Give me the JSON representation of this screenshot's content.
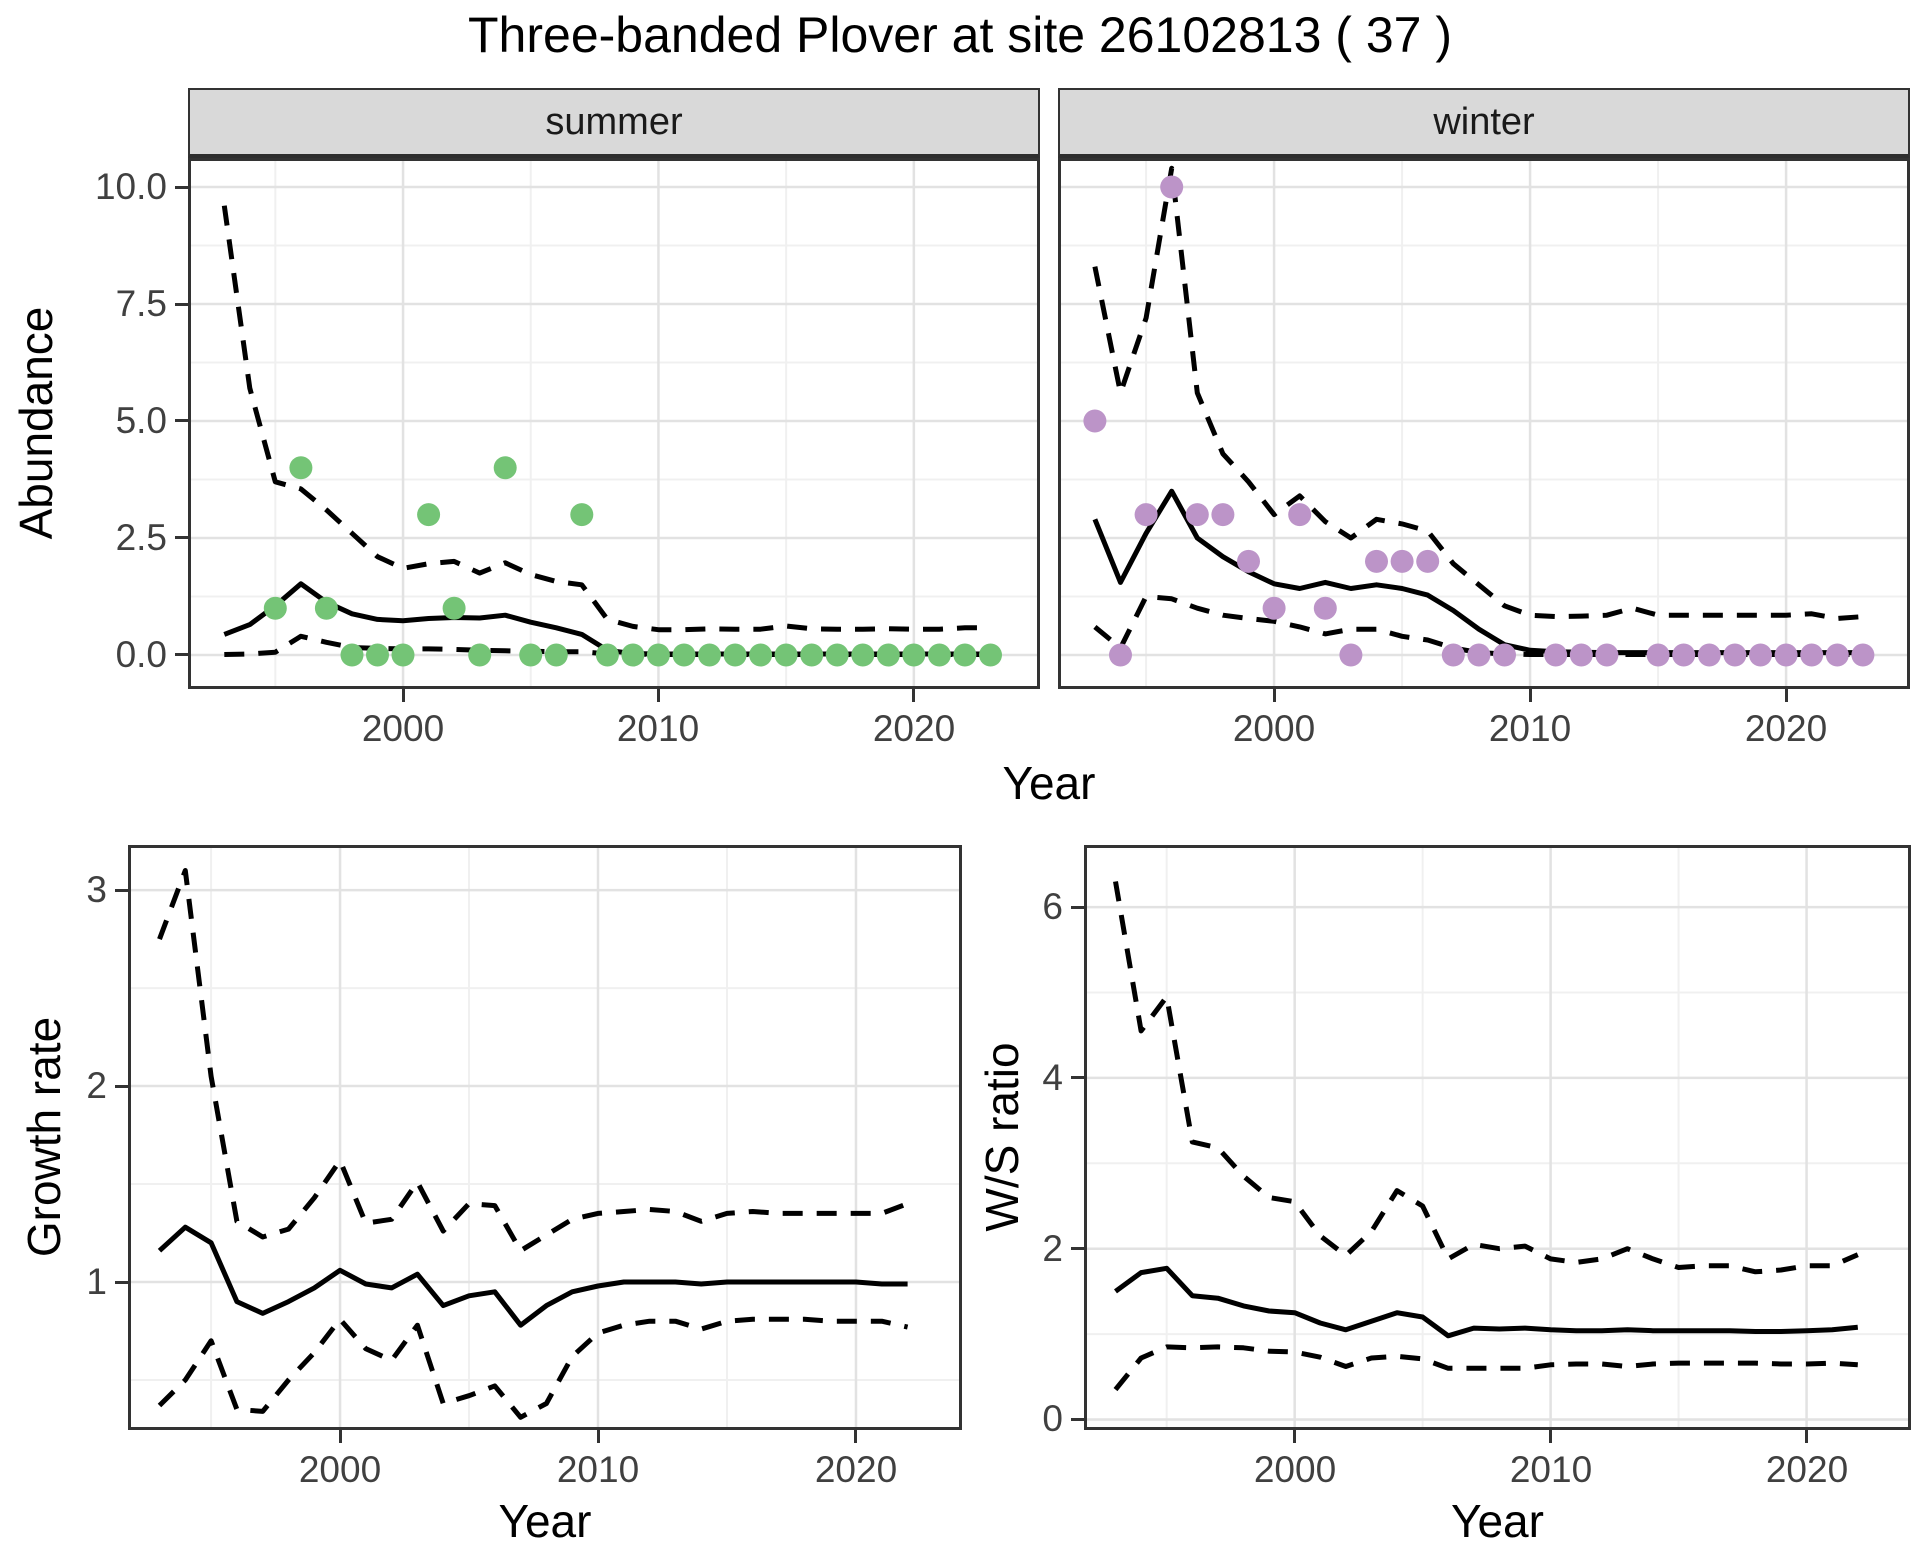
{
  "title": "Three-banded Plover at site 26102813 ( 37 )",
  "colors": {
    "summer_point": "#74C476",
    "winter_point": "#BC94C8",
    "fit_line": "#000000",
    "ci_line": "#000000",
    "grid_major": "#E2E2E2",
    "grid_minor": "#F0F0F0",
    "panel_border": "#333333",
    "strip_bg": "#D9D9D9",
    "tick_text": "#404040"
  },
  "chart_data": [
    {
      "id": "summer",
      "type": "line",
      "facet": "summer",
      "xlabel": "Year",
      "ylabel": "Abundance",
      "xlim": [
        1991.58,
        2024.94
      ],
      "ylim": [
        -0.727,
        10.62
      ],
      "x_tick_values": [
        2000,
        2010,
        2020
      ],
      "x_tick_labels": [
        "2000",
        "2010",
        "2020"
      ],
      "x_minor": [
        1995,
        2005,
        2015
      ],
      "y_tick_values": [
        0,
        2.5,
        5,
        7.5,
        10
      ],
      "y_tick_labels": [
        "0.0",
        "2.5",
        "5.0",
        "7.5",
        "10.0"
      ],
      "y_minor": [
        1.25,
        3.75,
        6.25,
        8.75
      ],
      "show_y_tick_labels": true,
      "grid": true,
      "legend": "none",
      "years": [
        1993,
        1994,
        1995,
        1996,
        1997,
        1998,
        1999,
        2000,
        2001,
        2002,
        2003,
        2004,
        2005,
        2006,
        2007,
        2008,
        2009,
        2010,
        2011,
        2012,
        2013,
        2014,
        2015,
        2016,
        2017,
        2018,
        2019,
        2020,
        2021,
        2022,
        2023
      ],
      "series": [
        {
          "name": "fit",
          "style": "solid",
          "values": [
            0.44,
            0.65,
            1.05,
            1.52,
            1.13,
            0.88,
            0.76,
            0.73,
            0.78,
            0.8,
            0.79,
            0.85,
            0.7,
            0.58,
            0.44,
            0.1,
            0.03,
            0.02,
            0.02,
            0.02,
            0.02,
            0.02,
            0.02,
            0.02,
            0.02,
            0.02,
            0.02,
            0.02,
            0.02,
            0.02,
            0.02
          ]
        },
        {
          "name": "upper",
          "style": "dashed",
          "values": [
            9.6,
            5.7,
            3.7,
            3.55,
            3.1,
            2.6,
            2.1,
            1.85,
            1.95,
            2.0,
            1.75,
            1.97,
            1.72,
            1.57,
            1.5,
            0.76,
            0.61,
            0.54,
            0.54,
            0.56,
            0.55,
            0.55,
            0.62,
            0.56,
            0.55,
            0.55,
            0.56,
            0.55,
            0.55,
            0.58,
            0.58
          ]
        },
        {
          "name": "lower",
          "style": "dashed",
          "values": [
            0.01,
            0.02,
            0.06,
            0.4,
            0.27,
            0.16,
            0.14,
            0.13,
            0.13,
            0.12,
            0.1,
            0.09,
            0.08,
            0.07,
            0.07,
            0.02,
            0.02,
            0.01,
            0.01,
            0.01,
            0.01,
            0.01,
            0.01,
            0.01,
            0.01,
            0.01,
            0.01,
            0.01,
            0.01,
            0.01,
            0.01
          ]
        }
      ],
      "obs": {
        "years": [
          1995,
          1996,
          1997,
          1998,
          1999,
          2000,
          2001,
          2002,
          2003,
          2004,
          2005,
          2006,
          2007,
          2008,
          2009,
          2010,
          2011,
          2012,
          2013,
          2014,
          2015,
          2016,
          2017,
          2018,
          2019,
          2020,
          2021,
          2022,
          2023
        ],
        "values": [
          1,
          4,
          1,
          0,
          0,
          0,
          3,
          1,
          0,
          4,
          0,
          0,
          3,
          0,
          0,
          0,
          0,
          0,
          0,
          0,
          0,
          0,
          0,
          0,
          0,
          0,
          0,
          0,
          0
        ]
      },
      "point_color": "#74C476"
    },
    {
      "id": "winter",
      "type": "line",
      "facet": "winter",
      "xlabel": "Year",
      "ylabel": "Abundance",
      "xlim": [
        1991.56,
        2024.84
      ],
      "ylim": [
        -0.727,
        10.62
      ],
      "x_tick_values": [
        2000,
        2010,
        2020
      ],
      "x_tick_labels": [
        "2000",
        "2010",
        "2020"
      ],
      "x_minor": [
        1995,
        2005,
        2015
      ],
      "y_tick_values": [
        0,
        2.5,
        5,
        7.5,
        10
      ],
      "y_tick_labels": [
        "0.0",
        "2.5",
        "5.0",
        "7.5",
        "10.0"
      ],
      "y_minor": [
        1.25,
        3.75,
        6.25,
        8.75
      ],
      "show_y_tick_labels": false,
      "grid": true,
      "legend": "none",
      "years": [
        1993,
        1994,
        1995,
        1996,
        1997,
        1998,
        1999,
        2000,
        2001,
        2002,
        2003,
        2004,
        2005,
        2006,
        2007,
        2008,
        2009,
        2010,
        2011,
        2012,
        2013,
        2014,
        2015,
        2016,
        2017,
        2018,
        2019,
        2020,
        2021,
        2022,
        2023
      ],
      "series": [
        {
          "name": "fit",
          "style": "solid",
          "values": [
            2.9,
            1.55,
            2.6,
            3.5,
            2.5,
            2.1,
            1.78,
            1.52,
            1.42,
            1.55,
            1.42,
            1.5,
            1.42,
            1.28,
            0.95,
            0.55,
            0.22,
            0.1,
            0.07,
            0.06,
            0.05,
            0.05,
            0.05,
            0.05,
            0.05,
            0.05,
            0.05,
            0.05,
            0.05,
            0.05,
            0.05
          ]
        },
        {
          "name": "upper",
          "style": "dashed",
          "values": [
            8.3,
            5.6,
            7.2,
            10.4,
            5.6,
            4.3,
            3.7,
            3.0,
            3.4,
            2.85,
            2.5,
            2.9,
            2.8,
            2.65,
            1.95,
            1.5,
            1.05,
            0.85,
            0.82,
            0.83,
            0.85,
            1.0,
            0.85,
            0.85,
            0.85,
            0.85,
            0.85,
            0.85,
            0.88,
            0.78,
            0.82
          ]
        },
        {
          "name": "lower",
          "style": "dashed",
          "values": [
            0.6,
            0.15,
            1.25,
            1.2,
            1.0,
            0.85,
            0.78,
            0.72,
            0.6,
            0.45,
            0.55,
            0.55,
            0.4,
            0.32,
            0.15,
            0.05,
            0.02,
            0.01,
            0.01,
            0.01,
            0.01,
            0.01,
            0.01,
            0.01,
            0.01,
            0.01,
            0.01,
            0.01,
            0.01,
            0.01,
            0.01
          ]
        }
      ],
      "obs": {
        "years": [
          1993,
          1994,
          1995,
          1996,
          1997,
          1998,
          1999,
          2000,
          2001,
          2002,
          2003,
          2004,
          2005,
          2006,
          2007,
          2008,
          2009,
          2011,
          2012,
          2013,
          2015,
          2016,
          2017,
          2018,
          2019,
          2020,
          2021,
          2022,
          2023
        ],
        "values": [
          5,
          0,
          3,
          10,
          3,
          3,
          2,
          1,
          3,
          1,
          0,
          2,
          2,
          2,
          0,
          0,
          0,
          0,
          0,
          0,
          0,
          0,
          0,
          0,
          0,
          0,
          0,
          0,
          0
        ]
      },
      "point_color": "#BC94C8"
    },
    {
      "id": "growth",
      "type": "line",
      "xlabel": "Year",
      "ylabel": "Growth rate",
      "xlim": [
        1991.78,
        2024.11
      ],
      "ylim": [
        0.245,
        3.23
      ],
      "x_tick_values": [
        2000,
        2010,
        2020
      ],
      "x_tick_labels": [
        "2000",
        "2010",
        "2020"
      ],
      "x_minor": [
        1995,
        2005,
        2015
      ],
      "y_tick_values": [
        1,
        2,
        3
      ],
      "y_tick_labels": [
        "1",
        "2",
        "3"
      ],
      "y_minor": [
        0.5,
        1.5,
        2.5
      ],
      "show_y_tick_labels": true,
      "grid": true,
      "legend": "none",
      "years": [
        1993,
        1994,
        1995,
        1996,
        1997,
        1998,
        1999,
        2000,
        2001,
        2002,
        2003,
        2004,
        2005,
        2006,
        2007,
        2008,
        2009,
        2010,
        2011,
        2012,
        2013,
        2014,
        2015,
        2016,
        2017,
        2018,
        2019,
        2020,
        2021,
        2022
      ],
      "series": [
        {
          "name": "fit",
          "style": "solid",
          "values": [
            1.16,
            1.28,
            1.2,
            0.9,
            0.84,
            0.9,
            0.97,
            1.06,
            0.99,
            0.97,
            1.04,
            0.88,
            0.93,
            0.95,
            0.78,
            0.88,
            0.95,
            0.98,
            1.0,
            1.0,
            1.0,
            0.99,
            1.0,
            1.0,
            1.0,
            1.0,
            1.0,
            1.0,
            0.99,
            0.99
          ]
        },
        {
          "name": "upper",
          "style": "dashed",
          "values": [
            2.75,
            3.1,
            2.05,
            1.31,
            1.23,
            1.27,
            1.43,
            1.62,
            1.3,
            1.32,
            1.51,
            1.26,
            1.4,
            1.39,
            1.16,
            1.24,
            1.32,
            1.35,
            1.36,
            1.37,
            1.36,
            1.31,
            1.35,
            1.36,
            1.35,
            1.35,
            1.35,
            1.35,
            1.35,
            1.4
          ]
        },
        {
          "name": "lower",
          "style": "dashed",
          "values": [
            0.37,
            0.5,
            0.7,
            0.35,
            0.34,
            0.5,
            0.64,
            0.81,
            0.66,
            0.6,
            0.78,
            0.38,
            0.42,
            0.47,
            0.31,
            0.38,
            0.62,
            0.74,
            0.78,
            0.8,
            0.8,
            0.76,
            0.8,
            0.81,
            0.81,
            0.81,
            0.8,
            0.8,
            0.8,
            0.77
          ]
        }
      ]
    },
    {
      "id": "ws",
      "type": "line",
      "xlabel": "Year",
      "ylabel": "W/S ratio",
      "xlim": [
        1991.77,
        2024.08
      ],
      "ylim": [
        -0.123,
        6.727
      ],
      "x_tick_values": [
        2000,
        2010,
        2020
      ],
      "x_tick_labels": [
        "2000",
        "2010",
        "2020"
      ],
      "x_minor": [
        1995,
        2005,
        2015
      ],
      "y_tick_values": [
        0,
        2,
        4,
        6
      ],
      "y_tick_labels": [
        "0",
        "2",
        "4",
        "6"
      ],
      "y_minor": [
        1,
        3,
        5
      ],
      "show_y_tick_labels": true,
      "grid": true,
      "legend": "none",
      "years": [
        1993,
        1994,
        1995,
        1996,
        1997,
        1998,
        1999,
        2000,
        2001,
        2002,
        2003,
        2004,
        2005,
        2006,
        2007,
        2008,
        2009,
        2010,
        2011,
        2012,
        2013,
        2014,
        2015,
        2016,
        2017,
        2018,
        2019,
        2020,
        2021,
        2022
      ],
      "series": [
        {
          "name": "fit",
          "style": "solid",
          "values": [
            1.5,
            1.72,
            1.77,
            1.45,
            1.42,
            1.33,
            1.27,
            1.25,
            1.13,
            1.05,
            1.15,
            1.25,
            1.2,
            0.98,
            1.07,
            1.06,
            1.07,
            1.05,
            1.04,
            1.04,
            1.05,
            1.04,
            1.04,
            1.04,
            1.04,
            1.03,
            1.03,
            1.04,
            1.05,
            1.08
          ]
        },
        {
          "name": "upper",
          "style": "dashed",
          "values": [
            6.3,
            4.55,
            4.95,
            3.25,
            3.18,
            2.85,
            2.6,
            2.55,
            2.15,
            1.92,
            2.2,
            2.68,
            2.5,
            1.88,
            2.05,
            2.0,
            2.03,
            1.88,
            1.84,
            1.88,
            2.0,
            1.88,
            1.78,
            1.8,
            1.8,
            1.73,
            1.75,
            1.8,
            1.8,
            1.93
          ]
        },
        {
          "name": "lower",
          "style": "dashed",
          "values": [
            0.35,
            0.72,
            0.85,
            0.84,
            0.85,
            0.84,
            0.8,
            0.79,
            0.73,
            0.62,
            0.72,
            0.74,
            0.71,
            0.6,
            0.6,
            0.6,
            0.6,
            0.64,
            0.65,
            0.65,
            0.62,
            0.65,
            0.66,
            0.66,
            0.66,
            0.66,
            0.65,
            0.65,
            0.66,
            0.64
          ]
        }
      ]
    }
  ]
}
